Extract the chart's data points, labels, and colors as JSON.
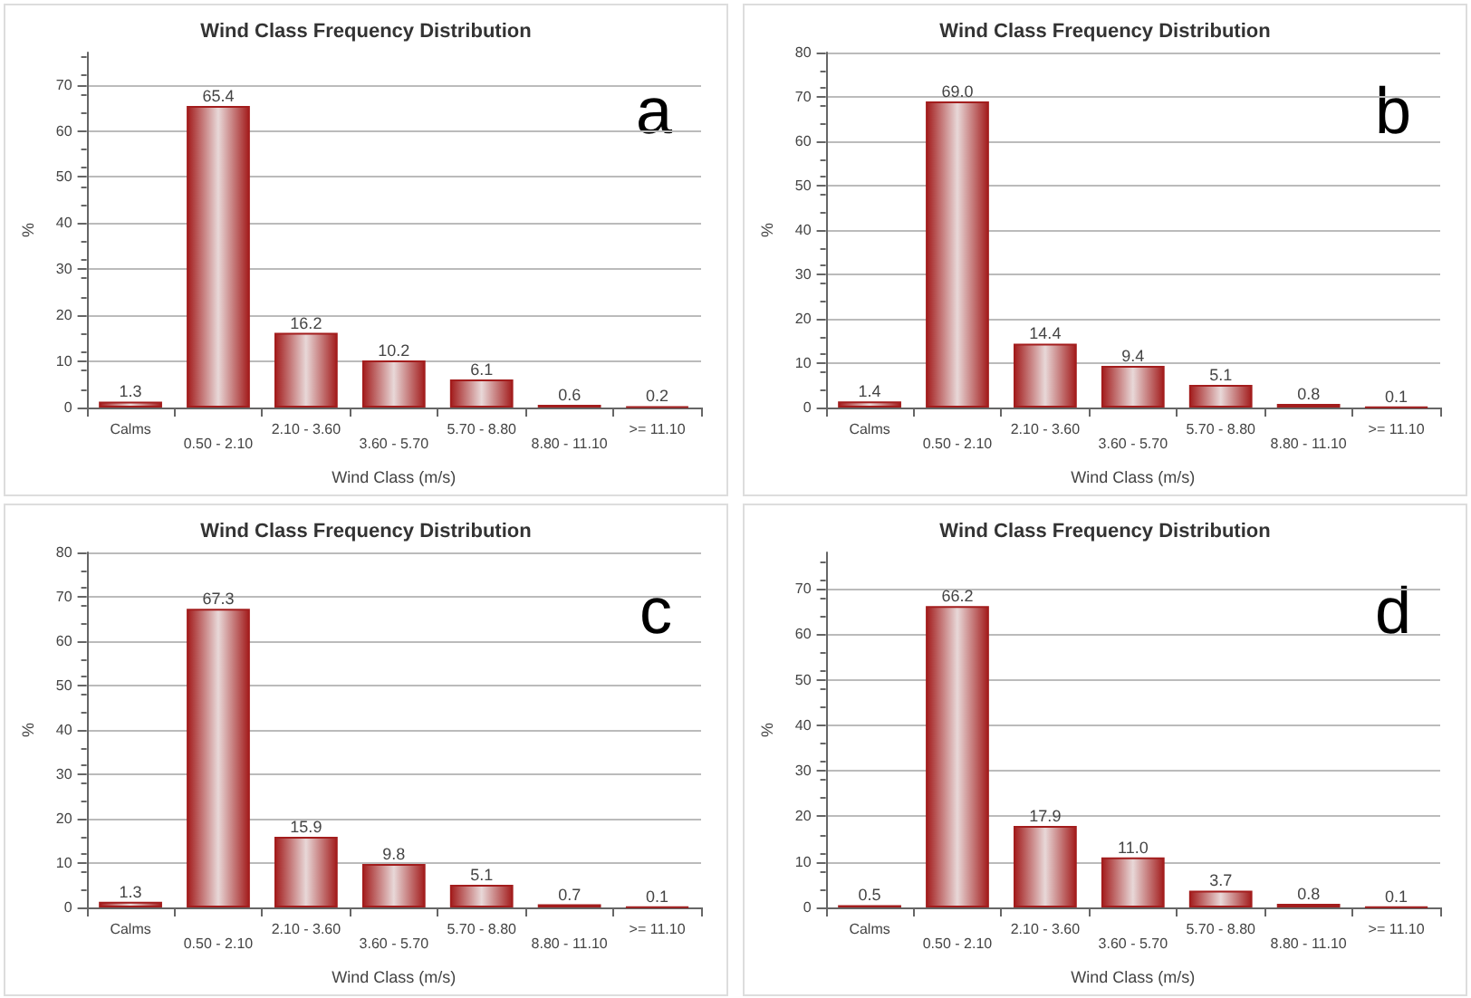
{
  "chart_data": [
    {
      "type": "bar",
      "title": "Wind Class Frequency Distribution",
      "xlabel": "Wind Class (m/s)",
      "ylabel": "%",
      "annotations": [
        "a"
      ],
      "categories": [
        "Calms",
        "0.50 - 2.10",
        "2.10 - 3.60",
        "3.60 - 5.70",
        "5.70 - 8.80",
        "8.80 - 11.10",
        ">= 11.10"
      ],
      "values": [
        1.3,
        65.4,
        16.2,
        10.2,
        6.1,
        0.6,
        0.2
      ],
      "color": "#a31d1d",
      "ylim": [
        0,
        77
      ],
      "yticks": [
        0,
        10,
        20,
        30,
        40,
        50,
        60,
        70
      ],
      "grid": "y",
      "data_labels": true
    },
    {
      "type": "bar",
      "title": "Wind Class Frequency Distribution",
      "xlabel": "Wind Class (m/s)",
      "ylabel": "%",
      "annotations": [
        "b"
      ],
      "categories": [
        "Calms",
        "0.50 - 2.10",
        "2.10 - 3.60",
        "3.60 - 5.70",
        "5.70 - 8.80",
        "8.80 - 11.10",
        ">= 11.10"
      ],
      "values": [
        1.4,
        69.0,
        14.4,
        9.4,
        5.1,
        0.8,
        0.1
      ],
      "value_labels": [
        "1.4",
        "69.0",
        "14.4",
        "9.4",
        "5.1",
        "0.8",
        "0.1"
      ],
      "color": "#a31d1d",
      "ylim": [
        0,
        80
      ],
      "yticks": [
        0,
        10,
        20,
        30,
        40,
        50,
        60,
        70,
        80
      ],
      "grid": "y"
    },
    {
      "type": "bar",
      "title": "Wind Class Frequency Distribution",
      "xlabel": "Wind Class (m/s)",
      "ylabel": "%",
      "annotations": [
        "c"
      ],
      "categories": [
        "Calms",
        "0.50 - 2.10",
        "2.10 - 3.60",
        "3.60 - 5.70",
        "5.70 - 8.80",
        "8.80 - 11.10",
        ">= 11.10"
      ],
      "values": [
        1.3,
        67.3,
        15.9,
        9.8,
        5.1,
        0.7,
        0.1
      ],
      "color": "#a31d1d",
      "ylim": [
        0,
        80
      ],
      "yticks": [
        0,
        10,
        20,
        30,
        40,
        50,
        60,
        70,
        80
      ],
      "grid": "y",
      "data_labels": true
    },
    {
      "type": "bar",
      "title": "Wind Class Frequency Distribution",
      "xlabel": "Wind Class (m/s)",
      "ylabel": "%",
      "annotations": [
        "d"
      ],
      "categories": [
        "Calms",
        "0.50 - 2.10",
        "2.10 - 3.60",
        "3.60 - 5.70",
        "5.70 - 8.80",
        "8.80 - 11.10",
        ">= 11.10"
      ],
      "values": [
        0.5,
        66.2,
        17.9,
        11.0,
        3.7,
        0.8,
        0.1
      ],
      "value_labels": [
        "0.5",
        "66.2",
        "17.9",
        "11.0",
        "3.7",
        "0.8",
        "0.1"
      ],
      "color": "#a31d1d",
      "ylim": [
        0,
        78
      ],
      "yticks": [
        0,
        10,
        20,
        30,
        40,
        50,
        60,
        70
      ],
      "grid": "y"
    }
  ]
}
